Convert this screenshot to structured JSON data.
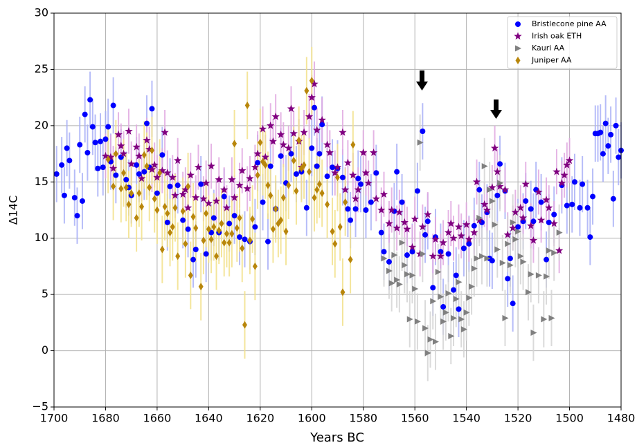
{
  "chart_data": {
    "type": "scatter",
    "x_label": "Years BC",
    "y_label": "Δ14C",
    "xlim": [
      1700,
      1480
    ],
    "ylim": [
      -5,
      30
    ],
    "xticks": [
      1700,
      1680,
      1660,
      1640,
      1620,
      1600,
      1580,
      1560,
      1540,
      1520,
      1500,
      1480
    ],
    "yticks": [
      {
        "value": -5,
        "label": "−5"
      },
      0,
      5,
      10,
      15,
      20,
      25,
      30
    ],
    "grid": true,
    "legend": "upper right",
    "series": [
      {
        "name": "Bristlecone pine AA",
        "color": "#0000ff",
        "error_color": "#a9b0f7",
        "marker": "circle",
        "error": 2.5,
        "x": [
          1699,
          1697,
          1696,
          1695,
          1694,
          1692,
          1691,
          1690,
          1689,
          1688,
          1687,
          1686,
          1685,
          1684,
          1683,
          1682,
          1681,
          1680,
          1679,
          1678,
          1677,
          1676,
          1674,
          1672,
          1671,
          1670,
          1668,
          1667,
          1665,
          1664,
          1663,
          1662,
          1660,
          1658,
          1656,
          1655,
          1652,
          1650,
          1648,
          1646,
          1645,
          1643,
          1641,
          1639,
          1638,
          1636,
          1634,
          1632,
          1630,
          1628,
          1626,
          1624,
          1622,
          1621,
          1619,
          1617,
          1616,
          1614,
          1612,
          1610,
          1608,
          1606,
          1604,
          1602,
          1600,
          1599,
          1598,
          1597,
          1596,
          1594,
          1592,
          1590,
          1588,
          1586,
          1585,
          1583,
          1582,
          1581,
          1579,
          1577,
          1575,
          1573,
          1572,
          1570,
          1568,
          1567,
          1565,
          1563,
          1561,
          1559,
          1557,
          1556,
          1555,
          1553,
          1552,
          1550,
          1549,
          1547,
          1545,
          1544,
          1543,
          1541,
          1539,
          1537,
          1535,
          1534,
          1532,
          1531,
          1530,
          1528,
          1527,
          1525,
          1524,
          1523,
          1522,
          1520,
          1518,
          1517,
          1515,
          1514,
          1513,
          1511,
          1509,
          1508,
          1506,
          1503,
          1501,
          1499,
          1498,
          1496,
          1495,
          1493,
          1492,
          1491,
          1490,
          1489,
          1488,
          1487,
          1486,
          1485,
          1484,
          1483,
          1482,
          1481,
          1480
        ],
        "values": [
          15.7,
          16.5,
          13.8,
          18,
          16.9,
          13.6,
          12,
          18.3,
          13.3,
          21,
          17.6,
          22.3,
          19.9,
          18.5,
          16.2,
          18.6,
          16.3,
          18.8,
          19.9,
          16.8,
          21.8,
          15.6,
          17.2,
          15.2,
          14.5,
          13.8,
          16.5,
          15.7,
          15.9,
          20.2,
          16.3,
          21.5,
          14,
          17.4,
          11.4,
          14.6,
          14.7,
          11.6,
          10.8,
          8.1,
          9,
          14.8,
          8.6,
          10.5,
          11.8,
          10.5,
          13.7,
          11.3,
          12,
          10.1,
          9.9,
          9.7,
          11,
          16.7,
          13.2,
          9.7,
          16.4,
          12.6,
          17.3,
          14.9,
          17.5,
          15.7,
          15.9,
          12.7,
          18,
          21.6,
          16.4,
          17.5,
          20.1,
          15.5,
          16.3,
          16.2,
          15.4,
          12.6,
          11.6,
          12.6,
          15.3,
          14.8,
          12.5,
          13.2,
          15.8,
          10.5,
          8.8,
          7.9,
          12.4,
          15.9,
          13.2,
          8.5,
          8.8,
          14.2,
          19.5,
          10.3,
          11.5,
          5.6,
          10.1,
          8.8,
          3.9,
          8.6,
          5.4,
          6.7,
          3.7,
          9.1,
          9.5,
          11.1,
          14.3,
          11.4,
          12.3,
          8.2,
          8,
          13.8,
          16.6,
          14.2,
          6.4,
          8.2,
          4.2,
          11,
          11.5,
          13.3,
          12.6,
          11.5,
          14.3,
          13.2,
          8.1,
          11.4,
          12.1,
          14.7,
          12.9,
          13,
          15,
          12.7,
          14.8,
          12.7,
          10.1,
          13.7,
          19.3,
          19.3,
          19.4,
          17.5,
          20.2,
          18.2,
          19.2,
          13.5,
          20,
          17.2,
          17.8
        ]
      },
      {
        "name": "Irish oak ETH",
        "color": "#800080",
        "error_color": "#e0a8e0",
        "marker": "star",
        "error": 2,
        "x": [
          1680,
          1678,
          1677,
          1675,
          1674,
          1673,
          1671,
          1670,
          1668,
          1667,
          1666,
          1664,
          1663,
          1662,
          1661,
          1660,
          1658,
          1657,
          1656,
          1654,
          1653,
          1652,
          1650,
          1649,
          1648,
          1647,
          1645,
          1644,
          1642,
          1641,
          1640,
          1639,
          1637,
          1636,
          1634,
          1633,
          1631,
          1630,
          1628,
          1627,
          1625,
          1624,
          1622,
          1621,
          1619,
          1618,
          1616,
          1615,
          1614,
          1612,
          1611,
          1609,
          1608,
          1607,
          1605,
          1604,
          1603,
          1601,
          1600,
          1599,
          1598,
          1596,
          1594,
          1593,
          1591,
          1590,
          1588,
          1587,
          1586,
          1584,
          1583,
          1582,
          1580,
          1579,
          1578,
          1576,
          1575,
          1573,
          1572,
          1570,
          1569,
          1567,
          1566,
          1564,
          1563,
          1561,
          1560,
          1558,
          1557,
          1555,
          1553,
          1552,
          1550,
          1549,
          1547,
          1546,
          1545,
          1543,
          1542,
          1540,
          1539,
          1537,
          1536,
          1535,
          1533,
          1532,
          1530,
          1529,
          1528,
          1527,
          1525,
          1524,
          1522,
          1521,
          1519,
          1518,
          1517,
          1515,
          1514,
          1512,
          1511,
          1509,
          1508,
          1506,
          1505,
          1504,
          1503,
          1502,
          1501,
          1500
        ],
        "values": [
          17.3,
          17.2,
          16.2,
          19.2,
          18.2,
          17.5,
          19.5,
          16.6,
          18.1,
          17.3,
          15.3,
          18.7,
          17.9,
          16.1,
          16.5,
          15.4,
          16,
          19.4,
          15.8,
          15.4,
          13.8,
          16.9,
          13.9,
          14.3,
          12.7,
          15.6,
          13.6,
          16.3,
          13.5,
          14.9,
          13.1,
          16.4,
          13.3,
          15.2,
          14.3,
          12.7,
          15.2,
          13.6,
          14.7,
          16,
          14.4,
          15.3,
          16.3,
          17.5,
          19.7,
          17.2,
          20,
          18.6,
          20.8,
          19.2,
          18.3,
          18,
          21.5,
          19.3,
          18.6,
          16.3,
          19.4,
          20.8,
          22.5,
          23.7,
          19.6,
          20.5,
          18.3,
          17.6,
          15.8,
          16.3,
          19.4,
          14.3,
          16.7,
          15.6,
          13.5,
          14.3,
          17.6,
          15.8,
          14.9,
          17.6,
          13.5,
          12.5,
          13.9,
          11.3,
          12.5,
          10.9,
          12.3,
          11.4,
          10.8,
          9.2,
          11.7,
          8.6,
          11,
          12.1,
          8.4,
          9.9,
          8.4,
          9.6,
          10.5,
          11.3,
          10,
          11,
          10.2,
          11.2,
          9.9,
          10.5,
          15,
          11.6,
          13,
          12.5,
          14.5,
          18,
          15.9,
          14.6,
          14.3,
          10.3,
          10.9,
          12.3,
          12.7,
          11.8,
          14.8,
          11.1,
          9.8,
          14.1,
          11.6,
          13.4,
          12.7,
          11.3,
          15.9,
          8.9,
          14.9,
          15.6,
          16.5,
          16.9
        ]
      },
      {
        "name": "Kauri AA",
        "color": "#808080",
        "error_color": "#d3d3d3",
        "marker": "triangle-right",
        "error": 2.5,
        "x": [
          1572,
          1570,
          1569,
          1568,
          1567,
          1566,
          1565,
          1564,
          1563,
          1562,
          1561,
          1560,
          1559,
          1558,
          1557,
          1556,
          1555,
          1554,
          1553,
          1552,
          1551,
          1550,
          1549,
          1548,
          1547,
          1546,
          1545,
          1544,
          1543,
          1542,
          1541,
          1540,
          1539,
          1538,
          1537,
          1536,
          1535,
          1534,
          1533,
          1532,
          1531,
          1530,
          1529,
          1528,
          1527,
          1526,
          1525,
          1524,
          1523,
          1522,
          1521,
          1520,
          1519,
          1518,
          1516,
          1515,
          1514,
          1512,
          1510,
          1509,
          1508,
          1507,
          1506,
          1504
        ],
        "values": [
          8.2,
          7.1,
          6,
          8.5,
          6.3,
          5.9,
          9.6,
          7.6,
          6.8,
          2.8,
          6.7,
          5.5,
          2.6,
          18.5,
          8.6,
          2,
          -0.2,
          1,
          4.4,
          0.8,
          7,
          4.8,
          2.6,
          3.4,
          5.1,
          1.3,
          2.9,
          4.6,
          6.1,
          2.8,
          1.9,
          3.4,
          4.7,
          5.7,
          7.3,
          8.2,
          11.8,
          8.4,
          16.4,
          8.2,
          14.3,
          13.3,
          11.2,
          9,
          14.9,
          7.8,
          2.9,
          9.5,
          7.6,
          11.4,
          9.9,
          10.6,
          8.4,
          7.9,
          5.2,
          6.8,
          1.6,
          6.7,
          2.8,
          6.6,
          8.9,
          2.9,
          8.7,
          10.5
        ]
      },
      {
        "name": "Juniper AA",
        "color": "#b8860b",
        "error_color": "#f2e08a",
        "marker": "diamond",
        "error": 3,
        "x": [
          1679,
          1677,
          1676,
          1674,
          1673,
          1672,
          1671,
          1670,
          1668,
          1667,
          1666,
          1665,
          1664,
          1663,
          1662,
          1661,
          1660,
          1659,
          1658,
          1657,
          1656,
          1655,
          1654,
          1653,
          1652,
          1650,
          1649,
          1648,
          1647,
          1646,
          1645,
          1643,
          1642,
          1641,
          1640,
          1639,
          1638,
          1637,
          1636,
          1635,
          1634,
          1633,
          1632,
          1631,
          1630,
          1629,
          1628,
          1627,
          1626,
          1625,
          1624,
          1623,
          1622,
          1621,
          1620,
          1619,
          1618,
          1617,
          1616,
          1615,
          1614,
          1613,
          1612,
          1611,
          1610,
          1609,
          1607,
          1606,
          1605,
          1604,
          1603,
          1602,
          1601,
          1600,
          1599,
          1598,
          1597,
          1596,
          1594,
          1592,
          1591,
          1590,
          1589,
          1588,
          1587,
          1585,
          1584
        ],
        "values": [
          17,
          14.6,
          17.5,
          14.4,
          15.8,
          14.5,
          13,
          14,
          11.8,
          14,
          12.8,
          17.4,
          16.4,
          14.5,
          17.8,
          13.5,
          12.5,
          15.8,
          9,
          12.8,
          12.2,
          10.5,
          11,
          12.7,
          8.4,
          12.4,
          9.5,
          14.6,
          6.7,
          11.9,
          10.9,
          5.7,
          9.8,
          12.2,
          10.8,
          9.9,
          11,
          8.4,
          10.7,
          11.3,
          9.6,
          10.4,
          9.6,
          10.4,
          18.4,
          10.9,
          11.8,
          9.1,
          2.3,
          21.8,
          9.8,
          11.7,
          7.5,
          15.6,
          18.5,
          16.8,
          16.5,
          14.7,
          13.8,
          10.8,
          12.6,
          11.3,
          11.6,
          13.6,
          10.6,
          14.7,
          16.9,
          14.2,
          18.7,
          16.2,
          16.5,
          23.1,
          15.9,
          24,
          13.6,
          14.3,
          14.8,
          14,
          13,
          10.6,
          9.5,
          15.4,
          11,
          5.2,
          13.2,
          8.1,
          18.3
        ]
      }
    ]
  }
}
